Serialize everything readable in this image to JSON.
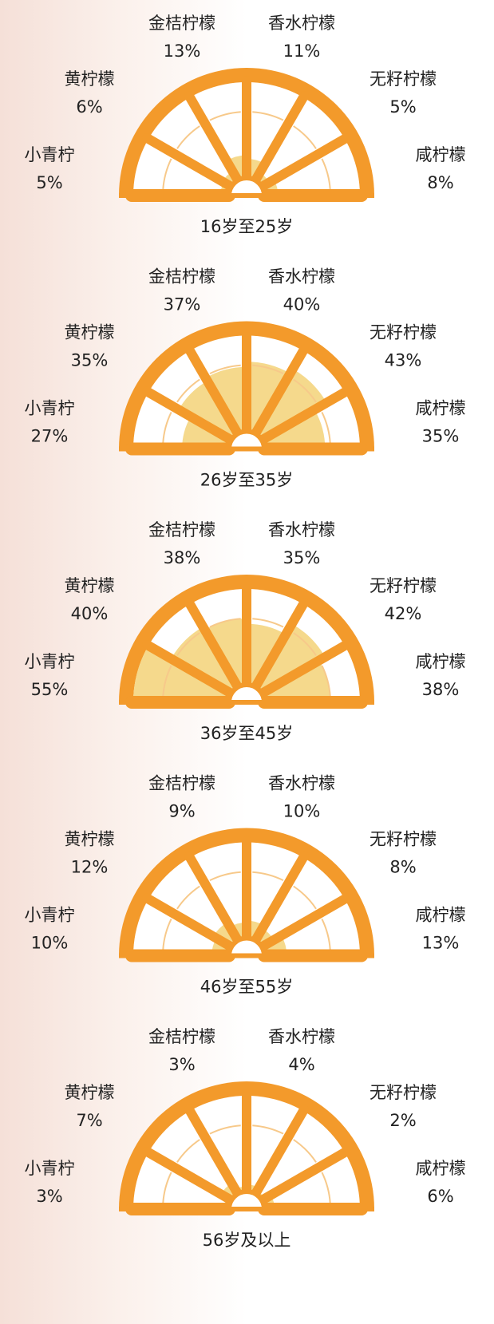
{
  "chart_data": [
    {
      "type": "rose",
      "title": "16岁至25岁",
      "categories": [
        "小青柠",
        "黄柠檬",
        "金桔柠檬",
        "香水柠檬",
        "无籽柠檬",
        "咸柠檬"
      ],
      "values": [
        5,
        6,
        13,
        11,
        5,
        8
      ],
      "value_labels": [
        "5%",
        "6%",
        "13%",
        "11%",
        "5%",
        "8%"
      ],
      "color": "#f5d98c",
      "frame_color": "#f39a2b"
    },
    {
      "type": "rose",
      "title": "26岁至35岁",
      "categories": [
        "小青柠",
        "黄柠檬",
        "金桔柠檬",
        "香水柠檬",
        "无籽柠檬",
        "咸柠檬"
      ],
      "values": [
        27,
        35,
        37,
        40,
        43,
        35
      ],
      "value_labels": [
        "27%",
        "35%",
        "37%",
        "40%",
        "43%",
        "35%"
      ],
      "color": "#f5d98c",
      "frame_color": "#f39a2b"
    },
    {
      "type": "rose",
      "title": "36岁至45岁",
      "categories": [
        "小青柠",
        "黄柠檬",
        "金桔柠檬",
        "香水柠檬",
        "无籽柠檬",
        "咸柠檬"
      ],
      "values": [
        55,
        40,
        38,
        35,
        42,
        38
      ],
      "value_labels": [
        "55%",
        "40%",
        "38%",
        "35%",
        "42%",
        "38%"
      ],
      "color": "#f5d98c",
      "frame_color": "#f39a2b"
    },
    {
      "type": "rose",
      "title": "46岁至55岁",
      "categories": [
        "小青柠",
        "黄柠檬",
        "金桔柠檬",
        "香水柠檬",
        "无籽柠檬",
        "咸柠檬"
      ],
      "values": [
        10,
        12,
        9,
        10,
        8,
        13
      ],
      "value_labels": [
        "10%",
        "12%",
        "9%",
        "10%",
        "8%",
        "13%"
      ],
      "color": "#f5d98c",
      "frame_color": "#f39a2b"
    },
    {
      "type": "rose",
      "title": "56岁及以上",
      "categories": [
        "小青柠",
        "黄柠檬",
        "金桔柠檬",
        "香水柠檬",
        "无籽柠檬",
        "咸柠檬"
      ],
      "values": [
        3,
        7,
        3,
        4,
        2,
        6
      ],
      "value_labels": [
        "3%",
        "7%",
        "3%",
        "4%",
        "2%",
        "6%"
      ],
      "color": "#f5d98c",
      "frame_color": "#f39a2b"
    }
  ]
}
